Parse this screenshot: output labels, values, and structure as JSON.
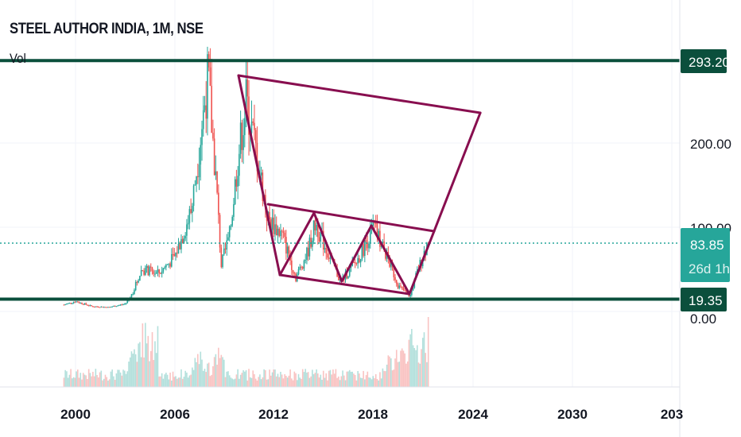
{
  "header": {
    "title": "STEEL AUTHOR INDIA, 1M, NSE",
    "volume_label": "Vol"
  },
  "colors": {
    "up": "#26a69a",
    "down": "#ef5350",
    "level_line": "#0b4f3c",
    "pattern": "#880e4f",
    "grid": "#f0f3fa"
  },
  "chart_data": {
    "type": "candlestick",
    "title": "STEEL AUTHOR INDIA, 1M, NSE",
    "x_ticks": [
      "2000",
      "2006",
      "2012",
      "2018",
      "2024",
      "2030",
      "203"
    ],
    "y_ticks": [
      "200.00",
      "100.00",
      "0.00"
    ],
    "ylim": [
      0,
      300
    ],
    "xlim": [
      1994.8,
      2036.9
    ],
    "price_path": [
      [
        1999.3,
        8
      ],
      [
        2000.0,
        12
      ],
      [
        2001.0,
        6
      ],
      [
        2002.0,
        5
      ],
      [
        2003.0,
        9
      ],
      [
        2003.4,
        20
      ],
      [
        2004.0,
        50
      ],
      [
        2005.0,
        45
      ],
      [
        2006.0,
        65
      ],
      [
        2007.0,
        120
      ],
      [
        2007.5,
        200
      ],
      [
        2008.0,
        280
      ],
      [
        2008.5,
        150
      ],
      [
        2008.8,
        55
      ],
      [
        2009.3,
        90
      ],
      [
        2009.8,
        180
      ],
      [
        2010.3,
        250
      ],
      [
        2011.0,
        180
      ],
      [
        2011.6,
        110
      ],
      [
        2012.5,
        90
      ],
      [
        2013.3,
        40
      ],
      [
        2014.0,
        70
      ],
      [
        2014.5,
        105
      ],
      [
        2015.0,
        80
      ],
      [
        2016.0,
        35
      ],
      [
        2017.0,
        60
      ],
      [
        2018.0,
        100
      ],
      [
        2018.7,
        70
      ],
      [
        2019.5,
        30
      ],
      [
        2020.2,
        18
      ],
      [
        2020.6,
        45
      ],
      [
        2021.3,
        84
      ]
    ],
    "horizontal_levels": [
      {
        "value": 293.2,
        "label": "293.20"
      },
      {
        "value": 19.35,
        "label": "19.35"
      }
    ],
    "last_price": {
      "value": 83.85,
      "label": "83.85",
      "countdown": "26d 1h"
    },
    "pattern_lines": [
      [
        [
          2009.84,
          274.5
        ],
        [
          2024.44,
          230.2
        ]
      ],
      [
        [
          2009.84,
          274.5
        ],
        [
          2012.34,
          37.7
        ]
      ],
      [
        [
          2011.62,
          121.7
        ],
        [
          2021.65,
          89.6
        ]
      ],
      [
        [
          2012.34,
          37.7
        ],
        [
          2020.16,
          15.1
        ]
      ],
      [
        [
          2012.34,
          37.7
        ],
        [
          2014.4,
          111.3
        ]
      ],
      [
        [
          2014.4,
          111.3
        ],
        [
          2016.08,
          30.2
        ]
      ],
      [
        [
          2016.08,
          30.2
        ],
        [
          2017.86,
          96.2
        ]
      ],
      [
        [
          2017.86,
          96.2
        ],
        [
          2020.16,
          15.1
        ]
      ],
      [
        [
          2020.16,
          15.1
        ],
        [
          2021.65,
          89.6
        ]
      ],
      [
        [
          2021.65,
          89.6
        ],
        [
          2024.44,
          230.2
        ]
      ]
    ]
  }
}
